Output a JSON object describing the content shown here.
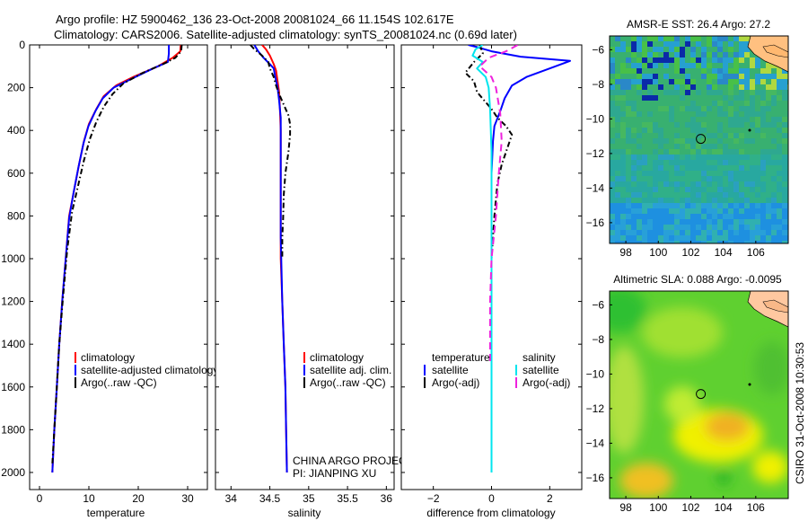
{
  "header": {
    "title_line1": "Argo profile: HZ 5900462_136 23-Oct-2008 20081024_66 11.154S 102.617E",
    "title_line2": "Climatology: CARS2006. Satellite-adjusted climatology: synTS_20081024.nc (0.69d later)"
  },
  "credits": {
    "project": "CHINA ARGO PROJECT",
    "pi": "PI: JIANPING XU",
    "stamp": "CSIRO 31-Oct-2008 10:30:53"
  },
  "colors": {
    "climatology": "#ff0000",
    "satellite": "#0000ff",
    "argo": "#000000",
    "cyan": "#00e5ee",
    "magenta": "#ee22dd"
  },
  "chart_data": [
    {
      "id": "temperature",
      "type": "line",
      "xlabel": "temperature",
      "xlim": [
        -2,
        34
      ],
      "xticks": [
        0,
        10,
        20,
        30
      ],
      "ylim": [
        0,
        2080
      ],
      "yticks": [
        0,
        200,
        400,
        600,
        800,
        1000,
        1200,
        1400,
        1600,
        1800,
        2000
      ],
      "legend": [
        "climatology",
        "satellite-adjusted climatology",
        "Argo(..raw -QC)"
      ],
      "series": [
        {
          "name": "climatology",
          "color": "#ff0000",
          "dash": "",
          "points": [
            [
              28.6,
              0
            ],
            [
              28.5,
              30
            ],
            [
              27,
              60
            ],
            [
              24,
              100
            ],
            [
              19,
              150
            ],
            [
              15.5,
              190
            ],
            [
              13,
              240
            ],
            [
              11.5,
              300
            ],
            [
              10,
              370
            ],
            [
              9,
              450
            ],
            [
              8,
              560
            ],
            [
              7,
              680
            ],
            [
              6,
              800
            ],
            [
              5.3,
              1000
            ],
            [
              4.6,
              1200
            ],
            [
              4,
              1400
            ],
            [
              3.5,
              1600
            ],
            [
              3,
              1800
            ],
            [
              2.6,
              2000
            ]
          ]
        },
        {
          "name": "satellite-adjusted climatology",
          "color": "#0000ff",
          "dash": "",
          "points": [
            [
              26.2,
              0
            ],
            [
              26.2,
              40
            ],
            [
              26,
              80
            ],
            [
              23,
              110
            ],
            [
              18.5,
              160
            ],
            [
              15,
              200
            ],
            [
              12.8,
              250
            ],
            [
              11.3,
              310
            ],
            [
              9.9,
              380
            ],
            [
              8.9,
              460
            ],
            [
              7.9,
              570
            ],
            [
              6.9,
              690
            ],
            [
              6,
              810
            ],
            [
              5.3,
              1000
            ],
            [
              4.6,
              1200
            ],
            [
              4,
              1400
            ],
            [
              3.5,
              1600
            ],
            [
              3,
              1800
            ],
            [
              2.6,
              2000
            ]
          ]
        },
        {
          "name": "Argo(..raw -QC)",
          "color": "#000000",
          "dash": "6,3,1.5,3",
          "points": [
            [
              28.8,
              0
            ],
            [
              28.7,
              30
            ],
            [
              27.5,
              60
            ],
            [
              25,
              90
            ],
            [
              21,
              130
            ],
            [
              17,
              180
            ],
            [
              14.8,
              230
            ],
            [
              13,
              290
            ],
            [
              11.5,
              360
            ],
            [
              10.2,
              440
            ],
            [
              9,
              540
            ],
            [
              7.8,
              660
            ],
            [
              6.6,
              780
            ],
            [
              5.6,
              960
            ],
            [
              4.7,
              1200
            ],
            [
              4,
              1400
            ],
            [
              3.5,
              1600
            ],
            [
              3,
              1800
            ],
            [
              2.6,
              1960
            ]
          ]
        }
      ]
    },
    {
      "id": "salinity",
      "type": "line",
      "xlabel": "salinity",
      "xlim": [
        33.8,
        36.1
      ],
      "xticks": [
        34,
        34.5,
        35,
        35.5,
        36
      ],
      "xticklabels": [
        "34",
        "34.5",
        "35",
        "35.5",
        "36"
      ],
      "ylim": [
        0,
        2080
      ],
      "legend": [
        "climatology",
        "satellite adj. clim.",
        "Argo(..raw -QC)"
      ],
      "series": [
        {
          "name": "climatology",
          "color": "#ff0000",
          "dash": "",
          "points": [
            [
              34.4,
              0
            ],
            [
              34.45,
              20
            ],
            [
              34.5,
              50
            ],
            [
              34.55,
              90
            ],
            [
              34.58,
              120
            ],
            [
              34.6,
              170
            ],
            [
              34.62,
              220
            ],
            [
              34.63,
              300
            ],
            [
              34.64,
              400
            ],
            [
              34.64,
              600
            ],
            [
              34.64,
              800
            ],
            [
              34.64,
              1000
            ],
            [
              34.66,
              1200
            ],
            [
              34.68,
              1400
            ],
            [
              34.7,
              1600
            ],
            [
              34.71,
              1800
            ],
            [
              34.72,
              2000
            ]
          ]
        },
        {
          "name": "satellite adj. clim.",
          "color": "#0000ff",
          "dash": "",
          "points": [
            [
              34.3,
              0
            ],
            [
              34.35,
              30
            ],
            [
              34.42,
              60
            ],
            [
              34.5,
              90
            ],
            [
              34.55,
              110
            ],
            [
              34.57,
              150
            ],
            [
              34.6,
              200
            ],
            [
              34.62,
              260
            ],
            [
              34.64,
              340
            ],
            [
              34.64,
              500
            ],
            [
              34.64,
              700
            ],
            [
              34.64,
              900
            ],
            [
              34.66,
              1200
            ],
            [
              34.68,
              1400
            ],
            [
              34.7,
              1600
            ],
            [
              34.71,
              1800
            ],
            [
              34.72,
              2000
            ]
          ]
        },
        {
          "name": "Argo(..raw -QC)",
          "color": "#000000",
          "dash": "6,3,1.5,3",
          "points": [
            [
              34.25,
              0
            ],
            [
              34.3,
              20
            ],
            [
              34.4,
              50
            ],
            [
              34.48,
              80
            ],
            [
              34.5,
              110
            ],
            [
              34.55,
              150
            ],
            [
              34.58,
              190
            ],
            [
              34.62,
              230
            ],
            [
              34.68,
              280
            ],
            [
              34.74,
              330
            ],
            [
              34.76,
              370
            ],
            [
              34.76,
              420
            ],
            [
              34.74,
              500
            ],
            [
              34.7,
              600
            ],
            [
              34.68,
              700
            ],
            [
              34.67,
              820
            ],
            [
              34.66,
              900
            ],
            [
              34.66,
              1000
            ]
          ]
        }
      ]
    },
    {
      "id": "difference",
      "type": "line",
      "xlabel": "difference from climatology",
      "xlim": [
        -3.1,
        3.1
      ],
      "xticks": [
        -2,
        0,
        2
      ],
      "xticklabels": [
        "−2",
        "0",
        "2"
      ],
      "ylim": [
        0,
        2080
      ],
      "legend_temperature": {
        "heading": "temperature",
        "items": [
          "satellite",
          "Argo(-adj)"
        ]
      },
      "legend_salinity": {
        "heading": "salinity",
        "items": [
          "satellite",
          "Argo(-adj)"
        ]
      },
      "series": [
        {
          "name": "temperature satellite",
          "color": "#0000ff",
          "dash": "",
          "points": [
            [
              -0.8,
              0
            ],
            [
              -0.5,
              10
            ],
            [
              0,
              30
            ],
            [
              1,
              55
            ],
            [
              2.7,
              75
            ],
            [
              2,
              110
            ],
            [
              1.2,
              150
            ],
            [
              0.7,
              190
            ],
            [
              0.45,
              250
            ],
            [
              0.3,
              310
            ],
            [
              0.1,
              380
            ],
            [
              0.05,
              450
            ],
            [
              0,
              600
            ],
            [
              0,
              1000
            ],
            [
              0,
              2000
            ]
          ]
        },
        {
          "name": "temperature Argo(-adj)",
          "color": "#000000",
          "dash": "6,3,1.5,3",
          "points": [
            [
              -0.4,
              0
            ],
            [
              -0.3,
              40
            ],
            [
              -0.6,
              80
            ],
            [
              -0.9,
              130
            ],
            [
              -0.6,
              170
            ],
            [
              -0.5,
              220
            ],
            [
              0,
              300
            ],
            [
              0.2,
              340
            ],
            [
              0.5,
              380
            ],
            [
              0.7,
              420
            ],
            [
              0.5,
              500
            ],
            [
              0.35,
              560
            ],
            [
              0.2,
              650
            ],
            [
              0.1,
              800
            ],
            [
              0,
              1000
            ],
            [
              0,
              1200
            ],
            [
              0,
              1400
            ],
            [
              0,
              1600
            ],
            [
              0,
              1800
            ],
            [
              0,
              2000
            ]
          ]
        },
        {
          "name": "salinity satellite",
          "color": "#00e5ee",
          "dash": "",
          "points": [
            [
              -0.3,
              0
            ],
            [
              -0.55,
              20
            ],
            [
              -0.65,
              50
            ],
            [
              -0.3,
              80
            ],
            [
              -0.5,
              110
            ],
            [
              -0.2,
              150
            ],
            [
              -0.1,
              200
            ],
            [
              -0.05,
              300
            ],
            [
              0,
              500
            ],
            [
              0,
              1000
            ],
            [
              0,
              2000
            ]
          ]
        },
        {
          "name": "salinity Argo(-adj)",
          "color": "#ee22dd",
          "dash": "8,5",
          "points": [
            [
              0.9,
              0
            ],
            [
              0.5,
              30
            ],
            [
              -0.1,
              60
            ],
            [
              -0.4,
              100
            ],
            [
              0,
              150
            ],
            [
              0.15,
              200
            ],
            [
              0.3,
              320
            ],
            [
              0.35,
              450
            ],
            [
              0.25,
              600
            ],
            [
              0.15,
              800
            ],
            [
              0,
              1000
            ],
            [
              -0.05,
              1200
            ],
            [
              -0.05,
              1500
            ]
          ]
        }
      ]
    },
    {
      "id": "sst-map",
      "type": "heatmap",
      "title": "AMSR-E SST: 26.4  Argo: 27.2",
      "xlim": [
        97,
        108
      ],
      "ylim": [
        -17.2,
        -5.2
      ],
      "xticks": [
        98,
        100,
        102,
        104,
        106
      ],
      "yticks": [
        -6,
        -8,
        -10,
        -12,
        -14,
        -16
      ],
      "marker": {
        "lon": 102.617,
        "lat": -11.154
      }
    },
    {
      "id": "sla-map",
      "type": "heatmap",
      "title": "Altimetric SLA: 0.088  Argo: -0.0095",
      "xlim": [
        97,
        108
      ],
      "ylim": [
        -17.2,
        -5.2
      ],
      "xticks": [
        98,
        100,
        102,
        104,
        106
      ],
      "yticks": [
        -6,
        -8,
        -10,
        -12,
        -14,
        -16
      ],
      "marker": {
        "lon": 102.617,
        "lat": -11.154
      }
    }
  ]
}
